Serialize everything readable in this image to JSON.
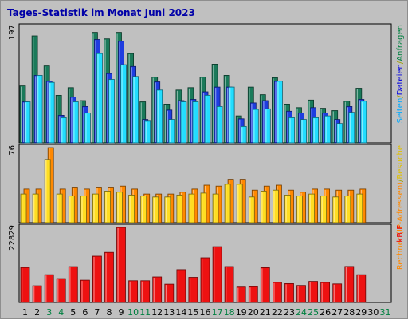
{
  "chart_data": {
    "title": "Tages-Statistik im Monat Juni 2023",
    "type": "bar",
    "categories": [
      "1",
      "2",
      "3",
      "4",
      "5",
      "6",
      "7",
      "8",
      "9",
      "10",
      "11",
      "12",
      "13",
      "14",
      "15",
      "16",
      "17",
      "18",
      "19",
      "20",
      "21",
      "22",
      "23",
      "24",
      "25",
      "26",
      "27",
      "28",
      "29",
      "30",
      "31"
    ],
    "weekend_days": [
      "3",
      "4",
      "10",
      "11",
      "17",
      "18",
      "24",
      "25",
      "31"
    ],
    "panels": [
      {
        "id": "requests",
        "ymax_label": "197",
        "ymax": 197,
        "side_label_parts": [
          {
            "text": "Seiten",
            "color": "#00aaff"
          },
          {
            "text": "/",
            "color": "#a0a000"
          },
          {
            "text": "Dateien",
            "color": "#0000e0"
          },
          {
            "text": "/",
            "color": "#a0a000"
          },
          {
            "text": "Anfragen",
            "color": "#008040"
          }
        ],
        "series": [
          {
            "name": "Anfragen",
            "color": "#1a7a5a",
            "values": [
              97,
              182,
              131,
              81,
              94,
              72,
              188,
              177,
              188,
              152,
              70,
              112,
              66,
              90,
              94,
              112,
              134,
              115,
              46,
              95,
              82,
              111,
              66,
              60,
              73,
              59,
              55,
              71,
              93,
              0,
              0
            ]
          },
          {
            "name": "Dateien",
            "color": "#1e3de0",
            "values": [
              70,
              115,
              105,
              47,
              78,
              62,
              176,
              118,
              173,
              130,
              40,
              104,
              56,
              72,
              74,
              87,
              95,
              95,
              41,
              68,
              72,
              105,
              54,
              51,
              60,
              51,
              40,
              62,
              74,
              0,
              0
            ]
          },
          {
            "name": "Seiten",
            "color": "#22ddff",
            "values": [
              70,
              115,
              103,
              43,
              70,
              51,
              152,
              108,
              133,
              113,
              37,
              90,
              40,
              70,
              70,
              81,
              62,
              95,
              28,
              57,
              58,
              105,
              43,
              40,
              43,
              46,
              33,
              52,
              71,
              0,
              0
            ]
          }
        ]
      },
      {
        "id": "visits",
        "ymax_label": "76",
        "ymax": 76,
        "side_label_parts": [
          {
            "text": "Rechner (IP-Adressen)",
            "color": "#ff8800"
          },
          {
            "text": "/",
            "color": "#a0a000"
          },
          {
            "text": "Besuche",
            "color": "#e0c000"
          }
        ],
        "series": [
          {
            "name": "Rechner",
            "color": "#ff8800",
            "values": [
              34,
              34,
              76,
              34,
              36,
              34,
              36,
              36,
              37,
              34,
              29,
              29,
              29,
              31,
              34,
              38,
              37,
              44,
              44,
              33,
              37,
              38,
              33,
              31,
              34,
              34,
              33,
              33,
              34,
              0,
              0
            ]
          },
          {
            "name": "Besuche",
            "color": "#ffdd22",
            "values": [
              29,
              29,
              64,
              29,
              27,
              27,
              29,
              32,
              31,
              28,
              27,
              26,
              26,
              28,
              29,
              30,
              29,
              39,
              39,
              26,
              32,
              33,
              28,
              27,
              29,
              27,
              26,
              27,
              29,
              0,
              0
            ]
          }
        ]
      },
      {
        "id": "kbytes",
        "ymax_label": "22829",
        "ymax": 22829,
        "side_label_parts": [
          {
            "text": "kB F",
            "color": "#ee0000"
          }
        ],
        "series": [
          {
            "name": "kB F",
            "color": "#ee1111",
            "values": [
              10630,
              5070,
              8460,
              7250,
              10910,
              6770,
              14080,
              15260,
              22829,
              6610,
              6610,
              7780,
              5560,
              9970,
              7640,
              13600,
              16980,
              10930,
              4690,
              4790,
              10590,
              6110,
              5740,
              5180,
              6410,
              6090,
              5630,
              10950,
              8460,
              0,
              0
            ]
          }
        ]
      }
    ]
  }
}
